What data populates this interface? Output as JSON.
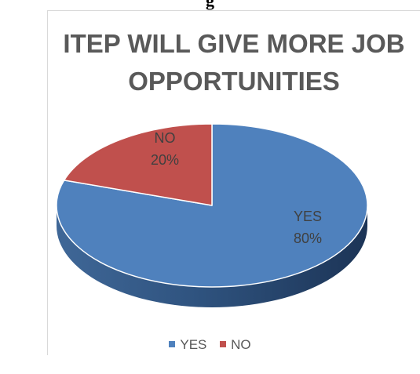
{
  "page": {
    "partial_heading": "g"
  },
  "chart_data": {
    "type": "pie",
    "title": "ITEP WILL GIVE MORE JOB OPPORTUNITIES",
    "title_lines": [
      "ITEP WILL GIVE MORE JOB",
      "OPPORTUNITIES"
    ],
    "style": "3d",
    "legend_position": "bottom",
    "categories": [
      "YES",
      "NO"
    ],
    "values": [
      80,
      20
    ],
    "data_labels": [
      {
        "category": "YES",
        "percent": "80%"
      },
      {
        "category": "NO",
        "percent": "20%"
      }
    ],
    "colors": {
      "YES": "#4f81bd",
      "NO": "#c0504d"
    }
  }
}
